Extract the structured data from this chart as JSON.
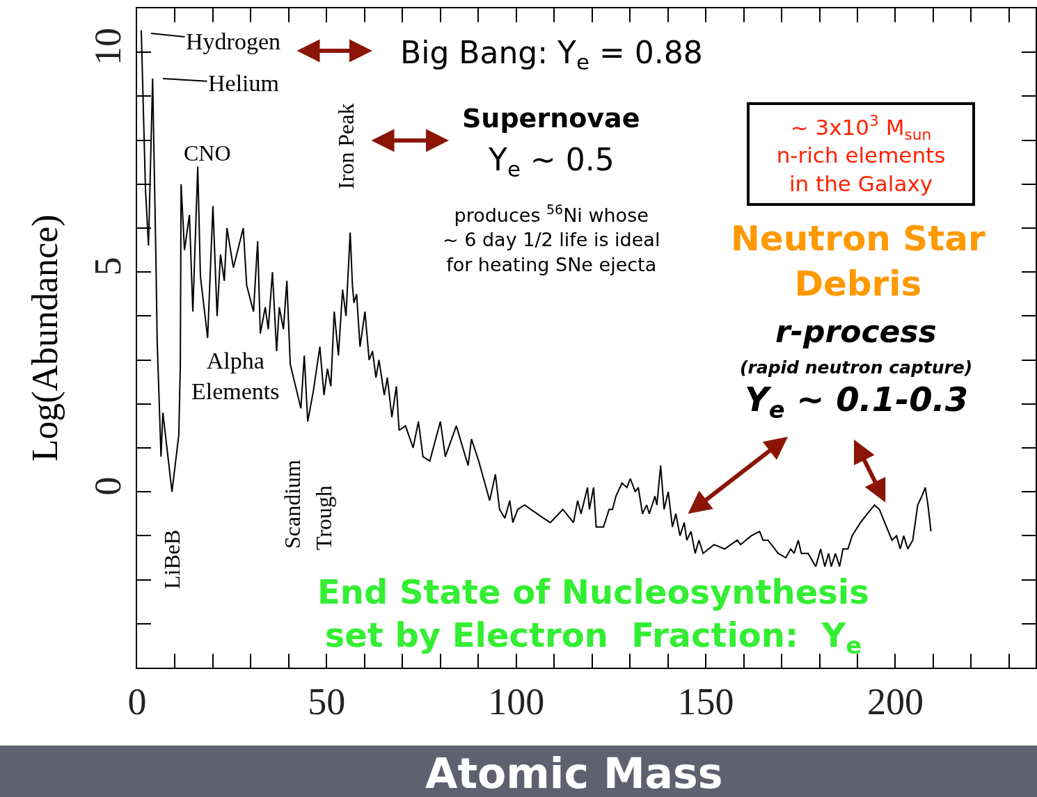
{
  "chart_data": {
    "type": "line",
    "xlabel": "Atomic Mass",
    "ylabel": "Log(Abundance)",
    "x": [
      1.1,
      2.2,
      3,
      4.1,
      5,
      5.3,
      6,
      6.3,
      6.8,
      9.2,
      11,
      11.4,
      11.6,
      12.5,
      13.8,
      14.7,
      16,
      16.7,
      18.6,
      20,
      21.1,
      22,
      23,
      23.7,
      25.4,
      28,
      28.9,
      30.7,
      31.8,
      32.5,
      33.8,
      34.6,
      35.7,
      36.8,
      37.5,
      38.6,
      39.5,
      40.4,
      43.2,
      44.1,
      45,
      46.5,
      48.2,
      49.3,
      50.2,
      51.1,
      52,
      53.1,
      54.2,
      55.1,
      56.2,
      56.8,
      57.2,
      57.9,
      58.8,
      60.1,
      61.2,
      62.1,
      63,
      63.8,
      65.2,
      66,
      67.2,
      68.4,
      69.1,
      70.8,
      72.8,
      74.2,
      75.4,
      77.2,
      80,
      81.3,
      84.2,
      87.3,
      88.2,
      90.1,
      93,
      94.5,
      95.6,
      97,
      98.3,
      99.1,
      100.4,
      102.2,
      107.2,
      109,
      112.3,
      115.1,
      116.2,
      117.1,
      118.8,
      119.3,
      120.4,
      121.1,
      123,
      124.5,
      125.4,
      126.3,
      127.9,
      129.2,
      130.1,
      131.4,
      132.2,
      133.3,
      134.4,
      135.1,
      136.6,
      137.1,
      138.1,
      139,
      140.1,
      141.2,
      142.1,
      143.2,
      144.3,
      145,
      146.1,
      147.2,
      148.2,
      149.3,
      152.2,
      155,
      158.3,
      159.2,
      162,
      164.2,
      165.1,
      166.4,
      169.1,
      171.1,
      172.4,
      173.3,
      174.4,
      175.2,
      177,
      179,
      180.3,
      181.4,
      182.4,
      183.1,
      184.2,
      185.3,
      186.2,
      187.5,
      188.6,
      190.8,
      192.6,
      194.5,
      195.8,
      197.2,
      199.1,
      200.3,
      201.3,
      202.2,
      203.3,
      204.6,
      205.9,
      207,
      207.9,
      208.6,
      209.4
    ],
    "series": [
      {
        "color": "#000000",
        "values": [
          10.5,
          6.9,
          5.6,
          9.4,
          5.1,
          3.4,
          1.6,
          0.8,
          1.8,
          0,
          1.3,
          2.9,
          7.0,
          5.5,
          6.3,
          4.1,
          7.4,
          4.9,
          3.5,
          6.5,
          4.0,
          5.4,
          4.8,
          6.0,
          5.1,
          6.0,
          4.7,
          4.1,
          5.7,
          3.6,
          4.2,
          3.7,
          5.0,
          3.2,
          4.2,
          3.7,
          4.8,
          2.9,
          1.9,
          3.1,
          1.6,
          2.3,
          3.3,
          2.2,
          2.8,
          2.4,
          4.1,
          3.1,
          4.6,
          4.0,
          5.9,
          4.7,
          4.3,
          4.5,
          3.3,
          4.1,
          3.0,
          3.2,
          2.6,
          3.0,
          2.2,
          2.6,
          1.7,
          2.4,
          1.4,
          1.5,
          1.0,
          1.6,
          0.8,
          0.7,
          1.6,
          0.8,
          1.5,
          0.6,
          1.2,
          0.7,
          -0.2,
          0.4,
          -0.4,
          -0.6,
          -0.2,
          -0.7,
          -0.4,
          -0.3,
          -0.6,
          -0.7,
          -0.4,
          -0.7,
          -0.2,
          -0.5,
          0.1,
          -0.4,
          0.1,
          -0.8,
          -0.8,
          -0.4,
          -0.4,
          -0.1,
          0.2,
          0.1,
          0.3,
          0.0,
          0.1,
          -0.5,
          -0.3,
          -0.5,
          -0.1,
          -0.3,
          0.6,
          -0.4,
          0,
          -0.8,
          -0.5,
          -1.0,
          -0.7,
          -1.1,
          -0.9,
          -1.4,
          -1.1,
          -1.4,
          -1.2,
          -1.3,
          -1.1,
          -1.2,
          -1.0,
          -0.9,
          -1.1,
          -1.1,
          -1.4,
          -1.5,
          -1.3,
          -1.4,
          -1.1,
          -1.4,
          -1.4,
          -1.7,
          -1.3,
          -1.7,
          -1.4,
          -1.7,
          -1.4,
          -1.7,
          -1.3,
          -1.3,
          -1.0,
          -0.7,
          -0.5,
          -0.3,
          -0.4,
          -0.7,
          -1.1,
          -1.0,
          -1.3,
          -1.0,
          -1.3,
          -1.1,
          -0.3,
          -0.1,
          0.1,
          -0.3,
          -0.9
        ]
      }
    ],
    "xlim": [
      0,
      237
    ],
    "ylim": [
      -4,
      11
    ],
    "xticks": [
      0,
      50,
      100,
      150,
      200
    ],
    "yticks": [
      0,
      5,
      10
    ],
    "annotations": [
      "Hydrogen",
      "Helium",
      "CNO",
      "Alpha\nElements",
      "Iron Peak",
      "Scandium",
      "Trough",
      "LiBeB",
      "Big Bang: Y$_{e}$ = 0.88",
      "Supernovae",
      "Y$_{e}$ ~ 0.5",
      "produces $^{56}$Ni whose\n~ 6 day 1/2 life is ideal\nfor heating SNe ejecta",
      "~ 3x10$^{3}$ M$_{sun}$\nn-rich elements\nin the Galaxy",
      "Neutron Star\nDebris",
      "r-process",
      "(rapid neutron capture)",
      "Y$_{e}$ ~ 0.1-0.3",
      "End State of Nucleosynthesis\nset by Electron  Fraction:  Y$_{e}$"
    ]
  }
}
